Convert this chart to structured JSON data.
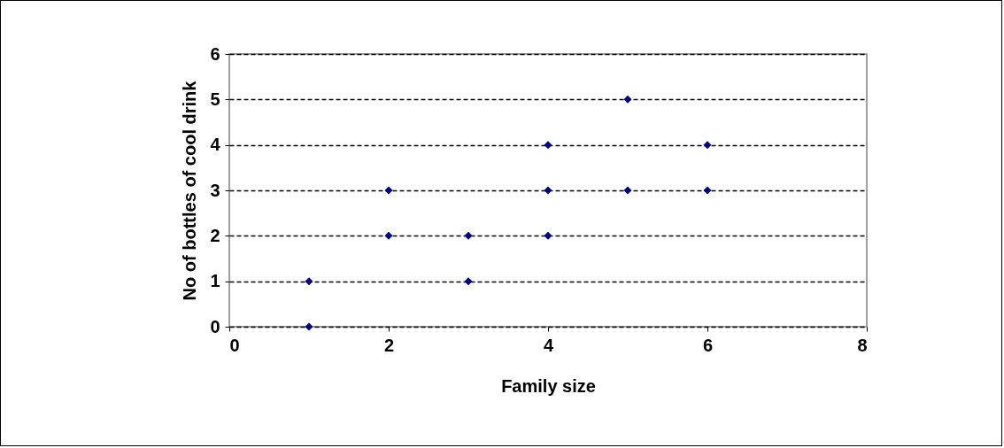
{
  "chart_data": {
    "type": "scatter",
    "xlabel": "Family size",
    "ylabel": "No of bottles of cool drink",
    "x": [
      1,
      1,
      2,
      2,
      3,
      3,
      4,
      4,
      4,
      5,
      5,
      6,
      6
    ],
    "series": [
      {
        "color": "#000080",
        "values": [
          0,
          1,
          2,
          3,
          1,
          2,
          2,
          3,
          4,
          3,
          5,
          3,
          4
        ]
      }
    ],
    "xlim": [
      0,
      8
    ],
    "xticks": [
      0,
      2,
      4,
      6,
      8
    ],
    "ylim": [
      0,
      6
    ],
    "yticks": [
      0,
      1,
      2,
      3,
      4,
      5,
      6
    ],
    "grid": "y",
    "line_style": "dashed",
    "marker": "diamond"
  }
}
